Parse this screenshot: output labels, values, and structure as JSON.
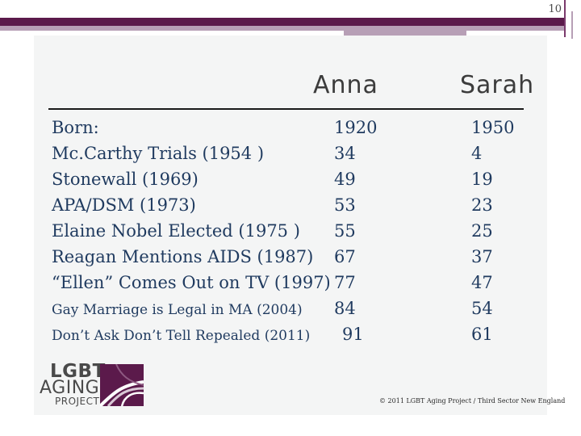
{
  "page_number": "10",
  "headers": {
    "anna": "Anna",
    "sarah": "Sarah"
  },
  "rows": [
    {
      "label": "Born:",
      "anna": "1920",
      "sarah": "1950",
      "size": "big"
    },
    {
      "label": "Mc.Carthy Trials (1954 )",
      "anna": "34",
      "sarah": "4",
      "size": "big"
    },
    {
      "label": "Stonewall (1969)",
      "anna": "49",
      "sarah": "19",
      "size": "big"
    },
    {
      "label": "APA/DSM (1973)",
      "anna": "53",
      "sarah": "23",
      "size": "big"
    },
    {
      "label": "Elaine Nobel Elected (1975 )",
      "anna": "55",
      "sarah": "25",
      "size": "big"
    },
    {
      "label": "Reagan Mentions AIDS  (1987)",
      "anna": "67",
      "sarah": "37",
      "size": "big"
    },
    {
      "label": "“Ellen” Comes Out on TV (1997)",
      "anna": "77",
      "sarah": "47",
      "size": "big"
    },
    {
      "label": "Gay Marriage is Legal in MA (2004)",
      "anna": "84",
      "sarah": "54",
      "size": "small"
    },
    {
      "label": "Don’t Ask Don’t Tell Repealed (2011)",
      "anna": "91",
      "sarah": "61",
      "size": "small"
    }
  ],
  "logo": {
    "line1": "LGBT",
    "line2": "AGING",
    "line3": "PROJECT"
  },
  "copyright": "© 2011 LGBT Aging Project / Third Sector New England",
  "colors": {
    "brand_purple": "#5b1a4b",
    "accent_lilac": "#b79fb6",
    "text_navy": "#1f3a5f"
  }
}
